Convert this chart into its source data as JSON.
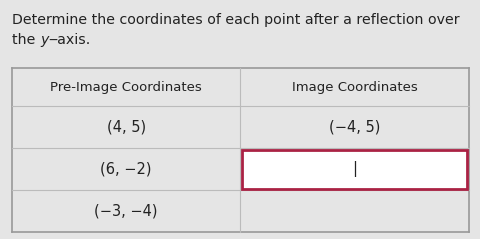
{
  "title_line1": "Determine the coordinates of each point after a reflection over",
  "title_line2_plain": "the ",
  "title_line2_italic": "y",
  "title_line2_end": "‒axis.",
  "col_headers": [
    "Pre-Image Coordinates",
    "Image Coordinates"
  ],
  "rows": [
    [
      "(4, 5)",
      "(−4, 5)"
    ],
    [
      "(6, −2)",
      "|"
    ],
    [
      "(−3, −4)",
      ""
    ]
  ],
  "highlight_row": 1,
  "bg_color": "#e5e5e5",
  "table_bg": "#e5e5e5",
  "cell_bg_highlight": "#ffffff",
  "highlight_border_color": "#aa2244",
  "line_color": "#bbbbbb",
  "border_color": "#999999",
  "text_color": "#222222",
  "font_size_title": 10.2,
  "font_size_header": 9.5,
  "font_size_cell": 10.5
}
